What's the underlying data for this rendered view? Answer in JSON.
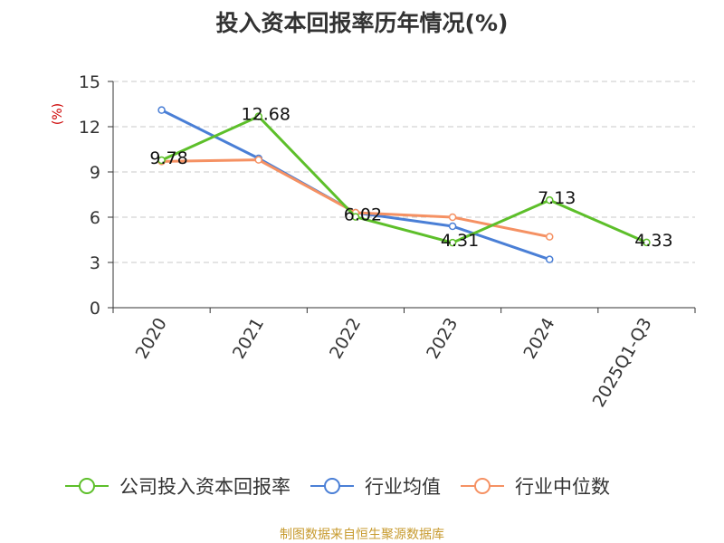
{
  "chart_data": {
    "type": "line",
    "title": "投入资本回报率历年情况(%)",
    "ylabel": "(%)",
    "xlabel": "",
    "categories": [
      "2020",
      "2021",
      "2022",
      "2023",
      "2024",
      "2025Q1-Q3"
    ],
    "ylim": [
      0,
      15
    ],
    "yticks": [
      0,
      3,
      6,
      9,
      12,
      15
    ],
    "grid": true,
    "legend_position": "bottom",
    "series": [
      {
        "name": "公司投入资本回报率",
        "color": "#5dbf2a",
        "values": [
          9.78,
          12.68,
          6.02,
          4.31,
          7.13,
          4.33
        ],
        "show_labels": true
      },
      {
        "name": "行业均值",
        "color": "#4a7fd6",
        "values": [
          13.1,
          9.9,
          6.3,
          5.4,
          3.2,
          null
        ],
        "show_labels": false
      },
      {
        "name": "行业中位数",
        "color": "#f59163",
        "values": [
          9.7,
          9.8,
          6.3,
          6.0,
          4.7,
          null
        ],
        "show_labels": false
      }
    ]
  },
  "footer": {
    "source": "制图数据来自恒生聚源数据库"
  }
}
